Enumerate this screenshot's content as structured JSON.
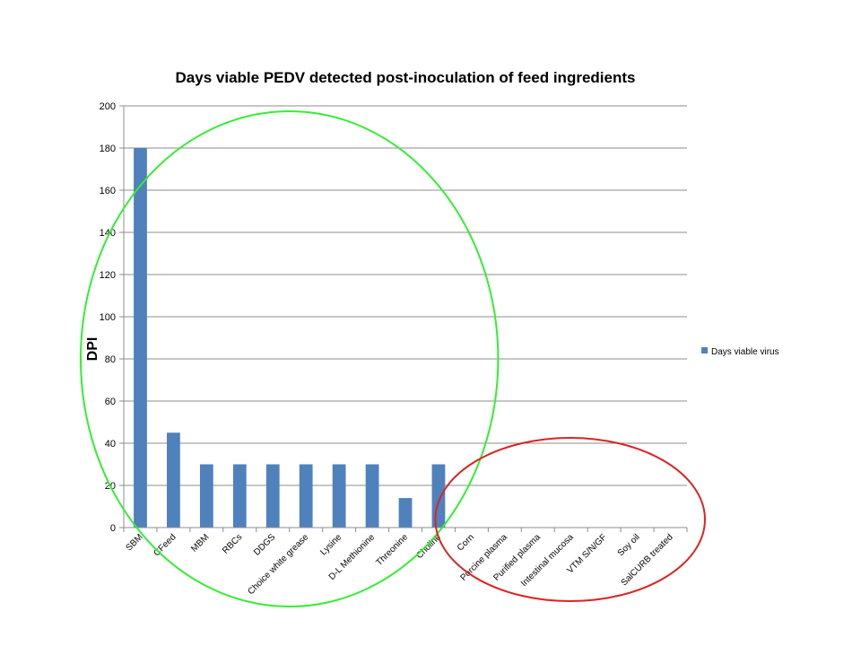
{
  "chart_data": {
    "type": "bar",
    "title": "Days viable PEDV detected post-inoculation of feed ingredients",
    "xlabel": "",
    "ylabel": "DPI",
    "ylim": [
      0,
      200
    ],
    "yticks": [
      0,
      20,
      40,
      60,
      80,
      100,
      120,
      140,
      160,
      180,
      200
    ],
    "grid": true,
    "legend_position": "right",
    "categories": [
      "SBM",
      "CFeed",
      "MBM",
      "RBCs",
      "DDGS",
      "Choice white grease",
      "Lysine",
      "D-L Methionine",
      "Threonine",
      "Choline",
      "Corn",
      "Porcine plasma",
      "Purified plasma",
      "Intestinal mucosa",
      "VTM S/N/GF",
      "Soy oil",
      "SalCURB treated"
    ],
    "series": [
      {
        "name": "Days viable virus",
        "color": "#4f81bd",
        "values": [
          180,
          45,
          30,
          30,
          30,
          30,
          30,
          30,
          14,
          30,
          0,
          0,
          0,
          0,
          0,
          0,
          0
        ]
      }
    ],
    "annotations": [
      {
        "shape": "ellipse",
        "color": "#33ee33",
        "encloses": [
          "SBM",
          "CFeed",
          "MBM",
          "RBCs",
          "DDGS",
          "Choice white grease",
          "Lysine",
          "D-L Methionine",
          "Threonine",
          "Choline"
        ]
      },
      {
        "shape": "ellipse",
        "color": "#dd2222",
        "encloses": [
          "Corn",
          "Porcine plasma",
          "Purified plasma",
          "Intestinal mucosa",
          "VTM S/N/GF",
          "Soy oil",
          "SalCURB treated"
        ]
      }
    ]
  }
}
